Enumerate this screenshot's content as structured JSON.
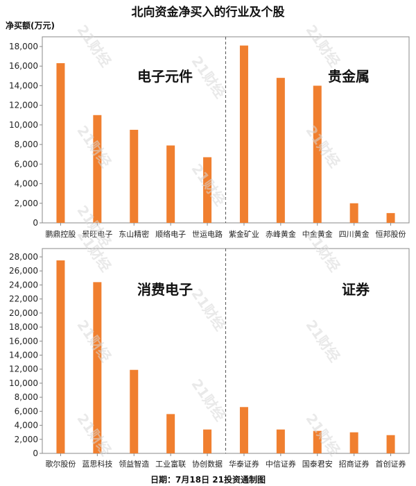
{
  "title": "北向资金净买入的行业及个股",
  "y_unit": "净买额(万元)",
  "footer": "日期：7月18日  21投资通制图",
  "watermark": "21财经",
  "colors": {
    "bar": "#F07F2F",
    "axis": "#888888",
    "divider": "#555555"
  },
  "chart_data": [
    {
      "type": "bar",
      "ylim": [
        0,
        18000
      ],
      "ytick_step": 2000,
      "groups": [
        "电子元件",
        "贵金属"
      ],
      "categories": [
        "鹏鼎控股",
        "景旺电子",
        "东山精密",
        "顺络电子",
        "世运电路",
        "紫金矿业",
        "赤峰黄金",
        "中金黄金",
        "四川黄金",
        "恒邦股份"
      ],
      "values": [
        16300,
        11000,
        9500,
        7900,
        6700,
        18100,
        14800,
        14000,
        2000,
        1000
      ]
    },
    {
      "type": "bar",
      "ylim": [
        0,
        28000
      ],
      "ytick_step": 2000,
      "groups": [
        "消费电子",
        "证券"
      ],
      "categories": [
        "歌尔股份",
        "蓝思科技",
        "领益智造",
        "工业富联",
        "协创数据",
        "华泰证券",
        "中信证券",
        "国泰君安",
        "招商证券",
        "首创证券"
      ],
      "values": [
        27500,
        24400,
        11900,
        5600,
        3400,
        6600,
        3400,
        3200,
        3000,
        2600
      ]
    }
  ]
}
